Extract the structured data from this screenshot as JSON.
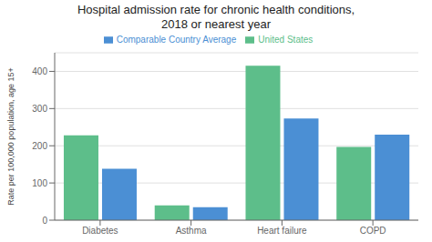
{
  "chart_data": {
    "type": "bar",
    "title": "Hospital admission rate for chronic health conditions,\n2018 or nearest year",
    "categories": [
      "Diabetes",
      "Asthma",
      "Heart failure",
      "COPD"
    ],
    "series": [
      {
        "name": "United States",
        "color": "#5dbe8a",
        "values": [
          228,
          40,
          415,
          197
        ]
      },
      {
        "name": "Comparable Country Average",
        "color": "#4b8fd4",
        "values": [
          138,
          35,
          273,
          230
        ]
      }
    ],
    "ylabel": "Rate per 100,000 population, age 15+",
    "ylim": [
      0,
      450
    ],
    "yticks": [
      0,
      100,
      200,
      300,
      400
    ],
    "grid": true,
    "legend": "top"
  }
}
